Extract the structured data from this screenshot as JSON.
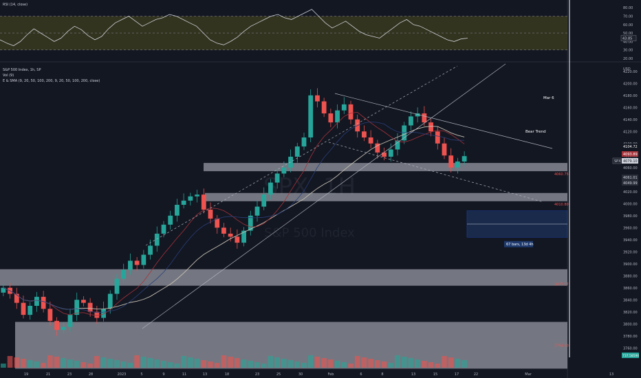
{
  "rsi_panel": {
    "title": "RSI (14, close)",
    "ticks": [
      "80.00",
      "70.00",
      "60.00",
      "50.00",
      "40.00",
      "30.00",
      "20.00"
    ],
    "current_label": "43.85",
    "current_value": 43.85
  },
  "main_panel": {
    "currency": "USD",
    "legend": [
      "S&P 500 Index, 1h, SP",
      "Vol (9)",
      "E & SMA (9, 20, 50, 100, 200, 9, 20, 50, 100, 200, close)"
    ],
    "watermark_symbol": "SPX, 1H",
    "watermark_name": "S&P 500 Index",
    "price_ticks": [
      "4220.00",
      "4200.00",
      "4180.00",
      "4160.00",
      "4140.00",
      "4120.00",
      "4100.00",
      "4080.00",
      "4060.00",
      "4040.00",
      "4020.00",
      "4000.00",
      "3980.00",
      "3960.00",
      "3940.00",
      "3920.00",
      "3900.00",
      "3880.00",
      "3860.00",
      "3840.00",
      "3820.00",
      "3800.00",
      "3780.00",
      "3760.00"
    ],
    "zone_labels": [
      "4060.75",
      "4010.80",
      "3877.17",
      "3764.40"
    ],
    "price_badges": [
      "4104.72",
      "4093.89",
      "4079.10",
      "4061.01",
      "4049.99"
    ],
    "symbol_badge": "SPX",
    "volume_badge": "737.58590",
    "annotations": {
      "date_note": "Mar 6",
      "trend_note": "Bear Trend",
      "range_note": "67 bars, 13d 4h"
    }
  },
  "time_axis": [
    "19",
    "21",
    "23",
    "28",
    "2023",
    "5",
    "9",
    "11",
    "13",
    "18",
    "23",
    "25",
    "30",
    "Feb",
    "6",
    "8",
    "13",
    "15",
    "17",
    "22",
    "Mar",
    "13"
  ],
  "colors": {
    "background": "#131722",
    "up": "#26a69a",
    "down": "#ef5350",
    "rsi_line": "#d1d4dc",
    "rsi_band": "#3a3a1e",
    "zone": "#9598a1",
    "ema_white": "#c8c2b4",
    "ma_red": "#a8323a",
    "ma_blue": "#2a3f7a",
    "range_box": "#1e3a6e"
  },
  "chart_data": {
    "type": "candlestick",
    "series_close": [
      3860,
      3850,
      3835,
      3815,
      3830,
      3845,
      3825,
      3805,
      3790,
      3795,
      3815,
      3840,
      3835,
      3820,
      3810,
      3825,
      3850,
      3875,
      3890,
      3905,
      3898,
      3915,
      3930,
      3950,
      3965,
      3980,
      3998,
      4005,
      4012,
      4015,
      3990,
      3975,
      3960,
      3950,
      3945,
      3935,
      3955,
      3980,
      3995,
      4015,
      4035,
      4050,
      4060,
      4078,
      4095,
      4110,
      4180,
      4170,
      4150,
      4135,
      4155,
      4165,
      4140,
      4120,
      4110,
      4100,
      4085,
      4078,
      4090,
      4105,
      4130,
      4145,
      4150,
      4135,
      4120,
      4100,
      4080,
      4060,
      4070,
      4079
    ],
    "ylim": [
      3750,
      4230
    ],
    "rsi_values": [
      42,
      38,
      35,
      40,
      48,
      55,
      50,
      45,
      40,
      44,
      52,
      58,
      54,
      47,
      42,
      46,
      55,
      62,
      66,
      70,
      64,
      58,
      62,
      66,
      68,
      72,
      70,
      66,
      62,
      58,
      50,
      42,
      38,
      36,
      40,
      45,
      52,
      58,
      62,
      66,
      70,
      72,
      68,
      66,
      70,
      74,
      78,
      70,
      62,
      56,
      60,
      64,
      58,
      52,
      48,
      46,
      44,
      50,
      56,
      62,
      66,
      60,
      58,
      54,
      50,
      46,
      42,
      40,
      43,
      44
    ],
    "rsi_ylim": [
      20,
      85
    ]
  }
}
